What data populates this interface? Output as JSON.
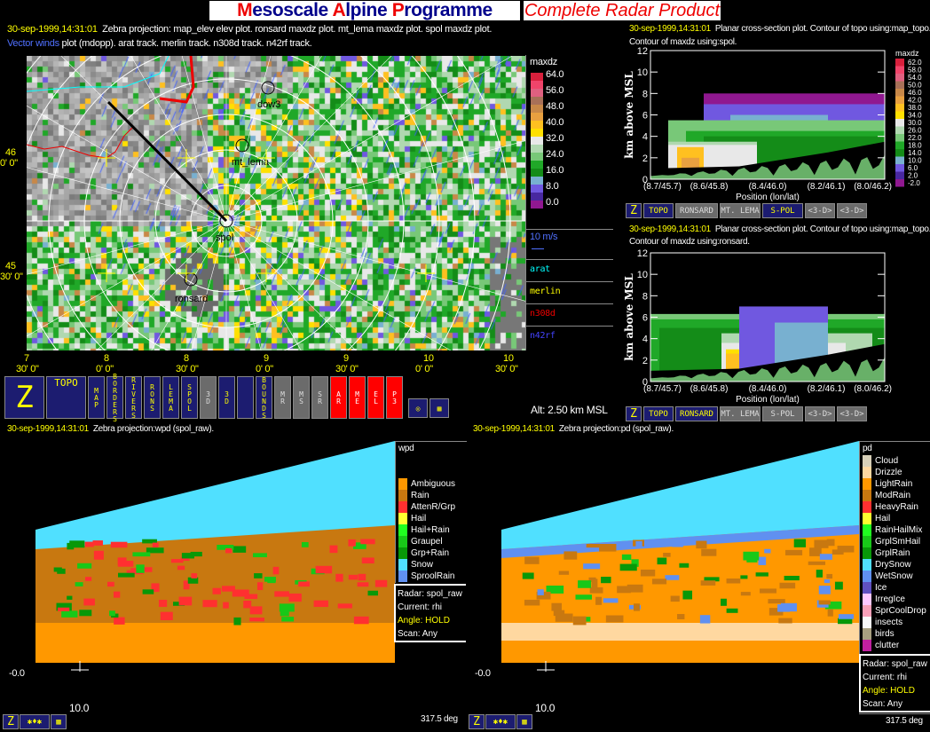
{
  "banner": {
    "title_parts": [
      {
        "t": "M",
        "c": "#e00"
      },
      {
        "t": "esoscale ",
        "c": "#00008b"
      },
      {
        "t": "A",
        "c": "#e00"
      },
      {
        "t": "lpine ",
        "c": "#00008b"
      },
      {
        "t": "P",
        "c": "#e00"
      },
      {
        "t": "rogramme",
        "c": "#00008b"
      }
    ],
    "title": "Mesoscale Alpine Programme",
    "subtitle": "Complete Radar Product"
  },
  "map": {
    "timestamp": "30-sep-1999,14:31:01",
    "line1": "Zebra projection: map_elev elev plot.  ronsard maxdz  plot.  mt_lema maxdz  plot.  spol maxdz  plot.",
    "vector_label": "Vector winds",
    "line2": " plot (mdopp). arat track.   merlin track.   n308d track.   n42rf track.",
    "stations": [
      "dow3",
      "mt_lema",
      "spol",
      "ronsard"
    ],
    "lat_labels": [
      [
        "46",
        "0' 0\""
      ],
      [
        "45",
        "30' 0\""
      ]
    ],
    "lon_labels": [
      [
        "7",
        "30' 0\""
      ],
      [
        "8",
        "0' 0\""
      ],
      [
        "8",
        "30' 0\""
      ],
      [
        "9",
        "0' 0\""
      ],
      [
        "9",
        "30' 0\""
      ],
      [
        "10",
        "0' 0\""
      ],
      [
        "10",
        "30' 0\""
      ]
    ],
    "legend_title": "maxdz",
    "legend_values": [
      "64.0",
      "56.0",
      "48.0",
      "40.0",
      "32.0",
      "24.0",
      "16.0",
      "8.0",
      "0.0"
    ],
    "legend_colors": [
      "#d8203c",
      "#f0446a",
      "#e06080",
      "#a87058",
      "#c88848",
      "#e8a040",
      "#ffc020",
      "#ffe000",
      "#e8e8e8",
      "#b0d8b0",
      "#78c878",
      "#20a828",
      "#148c18",
      "#78b0d0",
      "#7058e0",
      "#4828a0",
      "#901890"
    ],
    "wind_label": "10 m/s",
    "tracks": [
      {
        "name": "arat",
        "color": "#0ff"
      },
      {
        "name": "merlin",
        "color": "#ff0"
      },
      {
        "name": "n308d",
        "color": "#e00"
      },
      {
        "name": "n42rf",
        "color": "#44f"
      }
    ],
    "altitude": "Alt: 2.50 km MSL"
  },
  "toolbar": {
    "buttons": [
      {
        "label": "Z",
        "kind": "nav"
      },
      {
        "label": "TOPO",
        "kind": "nav"
      },
      {
        "label": "MAP",
        "kind": "nav"
      },
      {
        "label": "BORDERS",
        "kind": "nav"
      },
      {
        "label": "RIVERS",
        "kind": "nav"
      },
      {
        "label": "RONS",
        "kind": "nav"
      },
      {
        "label": "LEMA",
        "kind": "nav"
      },
      {
        "label": "SPOL",
        "kind": "nav"
      },
      {
        "label": "3D",
        "kind": "gry"
      },
      {
        "label": "3D",
        "kind": "nav"
      },
      {
        "label": "",
        "kind": "nav"
      },
      {
        "label": "BOUNDS",
        "kind": "nav"
      },
      {
        "label": "MR",
        "kind": "gry"
      },
      {
        "label": "MS",
        "kind": "gry"
      },
      {
        "label": "SR",
        "kind": "gry"
      },
      {
        "label": "AR",
        "kind": "red"
      },
      {
        "label": "ME",
        "kind": "red"
      },
      {
        "label": "EL",
        "kind": "red"
      },
      {
        "label": "P3",
        "kind": "red"
      },
      {
        "label": "◎",
        "kind": "nav"
      },
      {
        "label": "▦",
        "kind": "nav"
      }
    ]
  },
  "xsec1": {
    "timestamp": "30-sep-1999,14:31:01",
    "line1": "Planar cross-section plot.  Contour of topo using:map_topo.",
    "line2": "Contour of maxdz using:spol.",
    "ylabel": "km above MSL",
    "xlabel": "Position (lon/lat)",
    "yticks": [
      "0",
      "2",
      "4",
      "6",
      "8",
      "10",
      "12"
    ],
    "xticks": [
      "(8.7/45.7)",
      "(8.6/45.8)",
      "(8.4/46.0)",
      "(8.2/46.1)",
      "(8.0/46.2)"
    ],
    "legend_title": "maxdz",
    "legend_values": [
      "62.0",
      "58.0",
      "54.0",
      "50.0",
      "46.0",
      "42.0",
      "38.0",
      "34.0",
      "30.0",
      "26.0",
      "22.0",
      "18.0",
      "14.0",
      "10.0",
      "6.0",
      "2.0",
      "-2.0"
    ],
    "buttons": [
      {
        "label": "Z",
        "kind": "nav"
      },
      {
        "label": "TOPO",
        "kind": "nav"
      },
      {
        "label": "RONSARD",
        "kind": "gry"
      },
      {
        "label": "MT. LEMA",
        "kind": "gry"
      },
      {
        "label": "S-POL",
        "kind": "nav"
      },
      {
        "label": "<3-D>",
        "kind": "gry"
      },
      {
        "label": "<3-D>",
        "kind": "gry"
      }
    ]
  },
  "xsec2": {
    "timestamp": "30-sep-1999,14:31:01",
    "line1": "Planar cross-section plot.  Contour of topo using:map_topo.",
    "line2": "Contour of maxdz using:ronsard.",
    "ylabel": "km above MSL",
    "xlabel": "Position (lon/lat)",
    "yticks": [
      "0",
      "2",
      "4",
      "6",
      "8",
      "10",
      "12"
    ],
    "xticks": [
      "(8.7/45.7)",
      "(8.6/45.8)",
      "(8.4/46.0)",
      "(8.2/46.1)",
      "(8.0/46.2)"
    ],
    "buttons": [
      {
        "label": "Z",
        "kind": "nav"
      },
      {
        "label": "TOPO",
        "kind": "nav"
      },
      {
        "label": "RONSARD",
        "kind": "nav"
      },
      {
        "label": "MT. LEMA",
        "kind": "gry"
      },
      {
        "label": "S-POL",
        "kind": "gry"
      },
      {
        "label": "<3-D>",
        "kind": "gry"
      },
      {
        "label": "<3-D>",
        "kind": "gry"
      }
    ]
  },
  "rhi1": {
    "timestamp": "30-sep-1999,14:31:01",
    "line": "Zebra projection:wpd (spol_raw).",
    "legend_title": "wpd",
    "legend": [
      {
        "l": "Ambiguous",
        "c": "#ff9800"
      },
      {
        "l": "Rain",
        "c": "#c87810"
      },
      {
        "l": "AttenR/Grp",
        "c": "#ff3030"
      },
      {
        "l": "Hail",
        "c": "#ffff30"
      },
      {
        "l": "Hail+Rain",
        "c": "#20ff20"
      },
      {
        "l": "Graupel",
        "c": "#18c818"
      },
      {
        "l": "Grp+Rain",
        "c": "#089808"
      },
      {
        "l": "Snow",
        "c": "#50e0ff"
      },
      {
        "l": "SproolRain",
        "c": "#6090f0"
      }
    ],
    "info": {
      "radar": "Radar: spol_raw",
      "current": "Current: rhi",
      "angle": "Angle: HOLD",
      "scan": "Scan: Any"
    },
    "y_label": "-0.0",
    "x_label": "10.0",
    "azimuth": "317.5 deg"
  },
  "rhi2": {
    "timestamp": "30-sep-1999,14:31:01",
    "line": "Zebra projection:pd (spol_raw).",
    "legend_title": "pd",
    "legend": [
      {
        "l": "Cloud",
        "c": "#d8d0b8"
      },
      {
        "l": "Drizzle",
        "c": "#ffd8a0"
      },
      {
        "l": "LightRain",
        "c": "#ff9800"
      },
      {
        "l": "ModRain",
        "c": "#c87810"
      },
      {
        "l": "HeavyRain",
        "c": "#ff3030"
      },
      {
        "l": "Hail",
        "c": "#ffff30"
      },
      {
        "l": "RainHailMix",
        "c": "#20ff20"
      },
      {
        "l": "GrplSmHail",
        "c": "#18c818"
      },
      {
        "l": "GrplRain",
        "c": "#089808"
      },
      {
        "l": "DrySnow",
        "c": "#50e0ff"
      },
      {
        "l": "WetSnow",
        "c": "#6090f0"
      },
      {
        "l": "Ice",
        "c": "#6050c0"
      },
      {
        "l": "IrregIce",
        "c": "#ffc8ff"
      },
      {
        "l": "SprCoolDrop",
        "c": "#f8a0b8"
      },
      {
        "l": "insects",
        "c": "#f8f8f8"
      },
      {
        "l": "birds",
        "c": "#a8a080"
      },
      {
        "l": "clutter",
        "c": "#c020a0"
      }
    ],
    "info": {
      "radar": "Radar: spol_raw",
      "current": "Current: rhi",
      "angle": "Angle: HOLD",
      "scan": "Scan: Any"
    },
    "y_label": "-0.0",
    "x_label": "10.0",
    "azimuth": "317.5 deg"
  },
  "rhi_toolbar": [
    {
      "label": "Z"
    },
    {
      "label": "✱♦✱"
    },
    {
      "label": "▦"
    }
  ]
}
